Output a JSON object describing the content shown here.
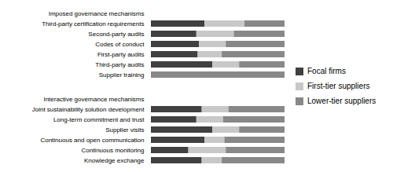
{
  "chart_data": [
    {
      "type": "bar",
      "orientation": "horizontal",
      "stacked": true,
      "tick_labels": "y",
      "legend": "right",
      "categories": [
        "Imposed governance mechanisms",
        "Third-party certification requirements",
        "Second-party audits",
        "Codes of conduct",
        "First-party audits",
        "Third-party audits",
        "Supplier training"
      ],
      "xlim": [
        0,
        1.0
      ],
      "series": [
        {
          "name": "Focal firms",
          "color": "#404040",
          "values": [
            0.0,
            0.4,
            0.34,
            0.36,
            0.35,
            0.46,
            0.0
          ]
        },
        {
          "name": "First-tier suppliers",
          "color": "#c8c8c8",
          "values": [
            0.0,
            0.3,
            0.28,
            0.2,
            0.18,
            0.2,
            0.0
          ]
        },
        {
          "name": "Lower-tier suppliers",
          "color": "#888888",
          "values": [
            0.0,
            0.3,
            0.38,
            0.44,
            0.47,
            0.34,
            1.0
          ]
        }
      ]
    },
    {
      "type": "bar",
      "orientation": "horizontal",
      "stacked": true,
      "tick_labels": "y",
      "legend": "right",
      "categories": [
        "Interactive governance mechanisms",
        "Joint sustainability solution development",
        "Long-term commitment and trust",
        "Supplier visits",
        "Continuous and open communication",
        "Continuous monitoring",
        "Knowledge exchange"
      ],
      "xlim": [
        0,
        1.0
      ],
      "series": [
        {
          "name": "Focal firms",
          "color": "#404040",
          "values": [
            0.0,
            0.38,
            0.34,
            0.46,
            0.4,
            0.28,
            0.38
          ]
        },
        {
          "name": "First-tier suppliers",
          "color": "#c8c8c8",
          "values": [
            0.0,
            0.2,
            0.2,
            0.2,
            0.15,
            0.28,
            0.15
          ]
        },
        {
          "name": "Lower-tier suppliers",
          "color": "#888888",
          "values": [
            0.0,
            0.42,
            0.46,
            0.34,
            0.45,
            0.44,
            0.47
          ]
        }
      ]
    }
  ]
}
